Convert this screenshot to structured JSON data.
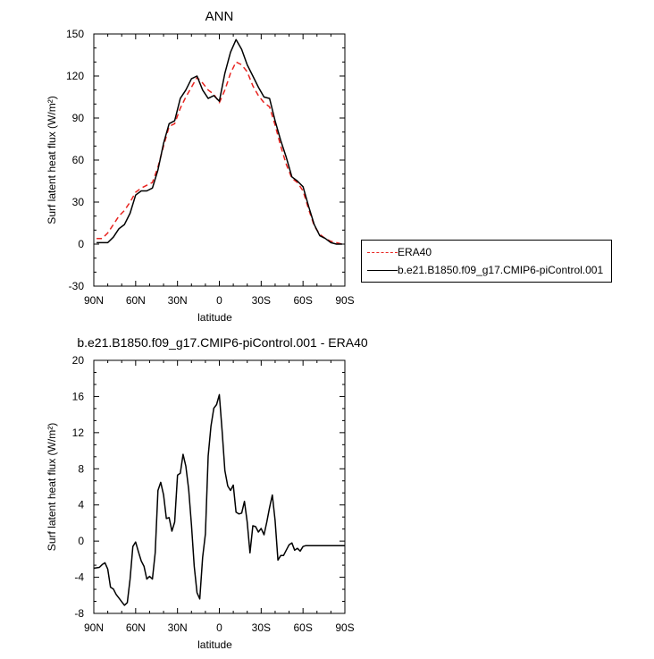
{
  "chart_data": [
    {
      "type": "line",
      "title": "ANN",
      "xlabel": "latitude",
      "ylabel": "Surf latent heat flux (W/m²)",
      "x_ticks": [
        "90N",
        "60N",
        "30N",
        "0",
        "30S",
        "60S",
        "90S"
      ],
      "x_tick_values": [
        90,
        60,
        30,
        0,
        -30,
        -60,
        -90
      ],
      "xlim": [
        90,
        -90
      ],
      "ylim": [
        -30,
        150
      ],
      "y_ticks": [
        -30,
        0,
        30,
        60,
        90,
        120,
        150
      ],
      "y_tick_labels": [
        "-30",
        "0",
        "30",
        "60",
        "90",
        "120",
        "150"
      ],
      "series": [
        {
          "name": "ERA40",
          "color": "#e8231f",
          "dash": "dashed",
          "x": [
            88,
            84,
            80,
            76,
            72,
            68,
            64,
            60,
            56,
            52,
            48,
            44,
            40,
            36,
            32,
            28,
            24,
            20,
            16,
            12,
            8,
            4,
            0,
            -4,
            -8,
            -12,
            -16,
            -20,
            -24,
            -28,
            -32,
            -36,
            -40,
            -44,
            -48,
            -52,
            -56,
            -60,
            -64,
            -68,
            -72,
            -76,
            -80,
            -84,
            -88
          ],
          "y": [
            4,
            4,
            8,
            14,
            20,
            24,
            30,
            37,
            40,
            42,
            44,
            55,
            70,
            84,
            86,
            97,
            105,
            112,
            119,
            115,
            110,
            107,
            101,
            110,
            122,
            130,
            128,
            123,
            113,
            106,
            101,
            98,
            85,
            70,
            57,
            47,
            44,
            38,
            25,
            13,
            7,
            4,
            2,
            1,
            0
          ]
        },
        {
          "name": "b.e21.B1850.f09_g17.CMIP6-piControl.001",
          "color": "#000000",
          "dash": "solid",
          "x": [
            88,
            84,
            80,
            76,
            72,
            68,
            64,
            60,
            56,
            52,
            48,
            44,
            40,
            36,
            32,
            28,
            24,
            20,
            16,
            12,
            8,
            4,
            0,
            -4,
            -8,
            -12,
            -16,
            -20,
            -24,
            -28,
            -32,
            -36,
            -40,
            -44,
            -48,
            -52,
            -56,
            -60,
            -64,
            -68,
            -72,
            -76,
            -80,
            -84,
            -88
          ],
          "y": [
            1,
            1,
            1,
            5,
            11,
            14,
            22,
            35,
            38,
            38,
            40,
            53,
            72,
            86,
            88,
            104,
            110,
            118,
            120,
            110,
            104,
            106,
            102,
            122,
            137,
            146,
            139,
            128,
            120,
            112,
            105,
            104,
            88,
            74,
            62,
            48,
            45,
            41,
            27,
            14,
            6,
            4,
            1,
            0,
            0
          ]
        }
      ]
    },
    {
      "type": "line",
      "title": "b.e21.B1850.f09_g17.CMIP6-piControl.001 - ERA40",
      "xlabel": "latitude",
      "ylabel": "Surf latent heat flux (W/m²)",
      "x_ticks": [
        "90N",
        "60N",
        "30N",
        "0",
        "30S",
        "60S",
        "90S"
      ],
      "x_tick_values": [
        90,
        60,
        30,
        0,
        -30,
        -60,
        -90
      ],
      "xlim": [
        90,
        -90
      ],
      "ylim": [
        -8,
        20
      ],
      "y_ticks": [
        -8,
        -4,
        0,
        4,
        8,
        12,
        16,
        20
      ],
      "y_tick_labels": [
        "-8",
        "-4",
        "0",
        "4",
        "8",
        "12",
        "16",
        "20"
      ],
      "series": [
        {
          "color": "#000000",
          "dash": "solid",
          "x": [
            90,
            86,
            84,
            82,
            80,
            78,
            76,
            74,
            72,
            70,
            68,
            66,
            64,
            62,
            60,
            58,
            56,
            54,
            52,
            50,
            48,
            46,
            44,
            42,
            40,
            38,
            36,
            34,
            32,
            30,
            28,
            26,
            24,
            22,
            20,
            18,
            16,
            14,
            12,
            10,
            8,
            6,
            4,
            2,
            0,
            -2,
            -4,
            -6,
            -8,
            -10,
            -12,
            -14,
            -16,
            -18,
            -20,
            -22,
            -24,
            -26,
            -28,
            -30,
            -32,
            -34,
            -36,
            -38,
            -40,
            -42,
            -44,
            -46,
            -48,
            -50,
            -52,
            -54,
            -56,
            -58,
            -60,
            -62,
            -64,
            -66,
            -68,
            -70,
            -72,
            -74,
            -76,
            -78,
            -80,
            -82,
            -84,
            -86,
            -88,
            -90
          ],
          "y": [
            -3,
            -2.9,
            -2.6,
            -2.4,
            -3.1,
            -5.1,
            -5.3,
            -5.9,
            -6.3,
            -6.7,
            -7.1,
            -6.8,
            -4.2,
            -0.6,
            -0.1,
            -1.2,
            -2.2,
            -2.8,
            -4.2,
            -3.9,
            -4.2,
            -1.3,
            5.6,
            6.5,
            5.1,
            2.5,
            2.6,
            1.1,
            2.1,
            7.3,
            7.5,
            9.6,
            8.3,
            5.7,
            1.8,
            -2.8,
            -5.7,
            -6.4,
            -1.8,
            0.8,
            9.4,
            12.7,
            14.7,
            15.1,
            16.2,
            12.2,
            7.8,
            6.1,
            5.6,
            6.2,
            3.2,
            3.0,
            3.1,
            4.4,
            2.1,
            -1.3,
            1.7,
            1.6,
            1.0,
            1.4,
            0.7,
            2.1,
            3.7,
            5.1,
            2.3,
            -2.1,
            -1.6,
            -1.6,
            -1.0,
            -0.4,
            -0.2,
            -1.0,
            -0.8,
            -1.1,
            -0.6,
            -0.5,
            -0.5,
            -0.5,
            -0.5,
            -0.5,
            -0.5,
            -0.5,
            -0.5,
            -0.5,
            -0.5,
            -0.5,
            -0.5,
            -0.5,
            -0.5,
            -0.5
          ]
        }
      ]
    }
  ],
  "legend": {
    "entries": [
      {
        "label": "ERA40"
      },
      {
        "label": "b.e21.B1850.f09_g17.CMIP6-piControl.001"
      }
    ]
  }
}
